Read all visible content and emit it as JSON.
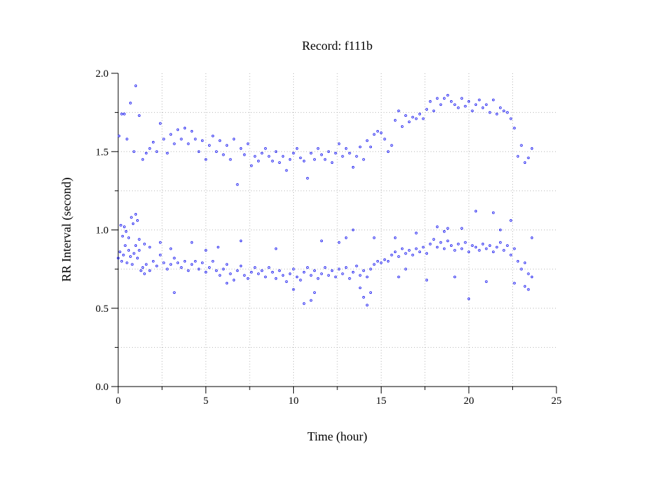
{
  "chart_data": {
    "type": "scatter",
    "title": "Record:  f111b",
    "xlabel": "Time (hour)",
    "ylabel": "RR Interval (second)",
    "xlim": [
      0,
      25
    ],
    "ylim": [
      0,
      2
    ],
    "x_ticks": [
      "0",
      "5",
      "10",
      "15",
      "20",
      "25"
    ],
    "y_ticks": [
      "0.0",
      "0.5",
      "1.0",
      "1.5",
      "2.0"
    ],
    "grid": true,
    "marker_color": "#1b1bf0",
    "series": [
      {
        "points": [
          [
            0.0,
            0.82
          ],
          [
            0.1,
            0.86
          ],
          [
            0.2,
            0.8
          ],
          [
            0.3,
            0.84
          ],
          [
            0.4,
            0.9
          ],
          [
            0.5,
            0.79
          ],
          [
            0.6,
            0.87
          ],
          [
            0.7,
            0.83
          ],
          [
            0.8,
            0.78
          ],
          [
            0.9,
            0.85
          ],
          [
            1.0,
            0.9
          ],
          [
            1.1,
            0.82
          ],
          [
            1.2,
            0.87
          ],
          [
            1.3,
            0.74
          ],
          [
            1.4,
            0.76
          ],
          [
            1.5,
            0.72
          ],
          [
            1.6,
            0.78
          ],
          [
            1.8,
            0.74
          ],
          [
            2.0,
            0.8
          ],
          [
            2.2,
            0.77
          ],
          [
            2.4,
            0.84
          ],
          [
            2.6,
            0.79
          ],
          [
            2.8,
            0.75
          ],
          [
            3.0,
            0.78
          ],
          [
            3.2,
            0.82
          ],
          [
            3.4,
            0.79
          ],
          [
            3.6,
            0.76
          ],
          [
            3.8,
            0.8
          ],
          [
            4.0,
            0.74
          ],
          [
            4.2,
            0.78
          ],
          [
            4.4,
            0.8
          ],
          [
            4.6,
            0.75
          ],
          [
            4.8,
            0.79
          ],
          [
            5.0,
            0.73
          ],
          [
            5.2,
            0.76
          ],
          [
            5.4,
            0.8
          ],
          [
            5.6,
            0.74
          ],
          [
            5.8,
            0.71
          ],
          [
            6.0,
            0.75
          ],
          [
            6.2,
            0.78
          ],
          [
            6.4,
            0.72
          ],
          [
            6.6,
            0.68
          ],
          [
            6.8,
            0.74
          ],
          [
            7.0,
            0.77
          ],
          [
            7.2,
            0.71
          ],
          [
            7.4,
            0.69
          ],
          [
            7.6,
            0.73
          ],
          [
            7.8,
            0.76
          ],
          [
            8.0,
            0.72
          ],
          [
            8.2,
            0.74
          ],
          [
            8.4,
            0.7
          ],
          [
            8.6,
            0.76
          ],
          [
            8.8,
            0.73
          ],
          [
            9.0,
            0.69
          ],
          [
            9.2,
            0.74
          ],
          [
            9.4,
            0.71
          ],
          [
            9.6,
            0.67
          ],
          [
            9.8,
            0.72
          ],
          [
            10.0,
            0.75
          ],
          [
            10.2,
            0.7
          ],
          [
            10.4,
            0.68
          ],
          [
            10.6,
            0.73
          ],
          [
            10.8,
            0.76
          ],
          [
            11.0,
            0.71
          ],
          [
            11.2,
            0.74
          ],
          [
            11.4,
            0.69
          ],
          [
            11.6,
            0.72
          ],
          [
            11.8,
            0.76
          ],
          [
            12.0,
            0.71
          ],
          [
            12.2,
            0.74
          ],
          [
            12.4,
            0.7
          ],
          [
            12.6,
            0.75
          ],
          [
            12.8,
            0.72
          ],
          [
            13.0,
            0.76
          ],
          [
            13.2,
            0.69
          ],
          [
            13.4,
            0.73
          ],
          [
            13.6,
            0.77
          ],
          [
            13.8,
            0.71
          ],
          [
            14.0,
            0.74
          ],
          [
            14.2,
            0.7
          ],
          [
            14.4,
            0.75
          ],
          [
            14.6,
            0.78
          ],
          [
            14.8,
            0.8
          ],
          [
            15.0,
            0.79
          ],
          [
            15.2,
            0.81
          ],
          [
            15.4,
            0.8
          ],
          [
            15.6,
            0.84
          ],
          [
            15.8,
            0.86
          ],
          [
            16.0,
            0.83
          ],
          [
            16.2,
            0.88
          ],
          [
            16.4,
            0.85
          ],
          [
            16.6,
            0.87
          ],
          [
            16.8,
            0.84
          ],
          [
            17.0,
            0.88
          ],
          [
            17.2,
            0.86
          ],
          [
            17.4,
            0.89
          ],
          [
            17.6,
            0.85
          ],
          [
            17.8,
            0.91
          ],
          [
            18.0,
            0.94
          ],
          [
            18.2,
            0.89
          ],
          [
            18.4,
            0.92
          ],
          [
            18.6,
            0.88
          ],
          [
            18.8,
            0.93
          ],
          [
            19.0,
            0.9
          ],
          [
            19.2,
            0.87
          ],
          [
            19.4,
            0.91
          ],
          [
            19.6,
            0.88
          ],
          [
            19.8,
            0.92
          ],
          [
            20.0,
            0.86
          ],
          [
            20.2,
            0.9
          ],
          [
            20.4,
            0.89
          ],
          [
            20.6,
            0.87
          ],
          [
            20.8,
            0.91
          ],
          [
            21.0,
            0.88
          ],
          [
            21.2,
            0.9
          ],
          [
            21.4,
            0.86
          ],
          [
            21.6,
            0.89
          ],
          [
            21.8,
            0.92
          ],
          [
            22.0,
            0.87
          ],
          [
            22.2,
            0.9
          ],
          [
            22.4,
            0.84
          ],
          [
            22.6,
            0.88
          ],
          [
            22.8,
            0.8
          ],
          [
            23.0,
            0.75
          ],
          [
            23.2,
            0.79
          ],
          [
            23.4,
            0.72
          ],
          [
            23.6,
            0.7
          ],
          [
            0.05,
            1.6
          ],
          [
            0.2,
            1.74
          ],
          [
            0.35,
            1.74
          ],
          [
            0.5,
            1.58
          ],
          [
            0.7,
            1.81
          ],
          [
            0.9,
            1.5
          ],
          [
            1.0,
            1.92
          ],
          [
            1.2,
            1.73
          ],
          [
            1.4,
            1.45
          ],
          [
            1.6,
            1.49
          ],
          [
            1.8,
            1.52
          ],
          [
            2.0,
            1.56
          ],
          [
            2.2,
            1.5
          ],
          [
            2.4,
            1.68
          ],
          [
            2.6,
            1.58
          ],
          [
            2.8,
            1.49
          ],
          [
            3.0,
            1.61
          ],
          [
            3.2,
            1.55
          ],
          [
            3.4,
            1.64
          ],
          [
            3.6,
            1.58
          ],
          [
            3.8,
            1.65
          ],
          [
            4.0,
            1.55
          ],
          [
            4.2,
            1.63
          ],
          [
            4.4,
            1.58
          ],
          [
            4.6,
            1.5
          ],
          [
            4.8,
            1.57
          ],
          [
            5.0,
            1.45
          ],
          [
            5.2,
            1.54
          ],
          [
            5.4,
            1.6
          ],
          [
            5.6,
            1.5
          ],
          [
            5.8,
            1.57
          ],
          [
            6.0,
            1.48
          ],
          [
            6.2,
            1.54
          ],
          [
            6.4,
            1.45
          ],
          [
            6.6,
            1.58
          ],
          [
            6.8,
            1.29
          ],
          [
            7.0,
            1.52
          ],
          [
            7.2,
            1.48
          ],
          [
            7.4,
            1.55
          ],
          [
            7.6,
            1.41
          ],
          [
            7.8,
            1.47
          ],
          [
            8.0,
            1.44
          ],
          [
            8.2,
            1.49
          ],
          [
            8.4,
            1.52
          ],
          [
            8.6,
            1.47
          ],
          [
            8.8,
            1.44
          ],
          [
            9.0,
            1.5
          ],
          [
            9.2,
            1.43
          ],
          [
            9.4,
            1.47
          ],
          [
            9.6,
            1.38
          ],
          [
            9.8,
            1.45
          ],
          [
            10.0,
            1.49
          ],
          [
            10.2,
            1.52
          ],
          [
            10.4,
            1.46
          ],
          [
            10.6,
            1.44
          ],
          [
            10.8,
            1.33
          ],
          [
            11.0,
            1.49
          ],
          [
            11.2,
            1.45
          ],
          [
            11.4,
            1.52
          ],
          [
            11.6,
            1.48
          ],
          [
            11.8,
            1.45
          ],
          [
            12.0,
            1.5
          ],
          [
            12.2,
            1.43
          ],
          [
            12.4,
            1.49
          ],
          [
            12.6,
            1.55
          ],
          [
            12.8,
            1.47
          ],
          [
            13.0,
            1.52
          ],
          [
            13.2,
            1.49
          ],
          [
            13.4,
            1.4
          ],
          [
            13.6,
            1.47
          ],
          [
            13.8,
            1.53
          ],
          [
            14.0,
            1.45
          ],
          [
            14.2,
            1.57
          ],
          [
            14.4,
            1.53
          ],
          [
            14.6,
            1.61
          ],
          [
            14.8,
            1.63
          ],
          [
            15.0,
            1.62
          ],
          [
            15.2,
            1.58
          ],
          [
            15.4,
            1.5
          ],
          [
            15.6,
            1.54
          ],
          [
            15.8,
            1.7
          ],
          [
            16.0,
            1.76
          ],
          [
            16.2,
            1.66
          ],
          [
            16.4,
            1.73
          ],
          [
            16.6,
            1.69
          ],
          [
            16.8,
            1.72
          ],
          [
            17.0,
            1.71
          ],
          [
            17.2,
            1.74
          ],
          [
            17.4,
            1.71
          ],
          [
            17.6,
            1.77
          ],
          [
            17.8,
            1.82
          ],
          [
            18.0,
            1.76
          ],
          [
            18.2,
            1.84
          ],
          [
            18.4,
            1.8
          ],
          [
            18.6,
            1.84
          ],
          [
            18.8,
            1.86
          ],
          [
            19.0,
            1.82
          ],
          [
            19.2,
            1.8
          ],
          [
            19.4,
            1.78
          ],
          [
            19.6,
            1.84
          ],
          [
            19.8,
            1.79
          ],
          [
            20.0,
            1.82
          ],
          [
            20.2,
            1.76
          ],
          [
            20.4,
            1.8
          ],
          [
            20.6,
            1.83
          ],
          [
            20.8,
            1.78
          ],
          [
            21.0,
            1.8
          ],
          [
            21.2,
            1.75
          ],
          [
            21.4,
            1.83
          ],
          [
            21.6,
            1.74
          ],
          [
            21.8,
            1.78
          ],
          [
            22.0,
            1.76
          ],
          [
            22.2,
            1.75
          ],
          [
            22.4,
            1.71
          ],
          [
            22.6,
            1.65
          ],
          [
            22.8,
            1.47
          ],
          [
            23.0,
            1.54
          ],
          [
            23.2,
            1.43
          ],
          [
            23.4,
            1.46
          ],
          [
            23.6,
            1.52
          ],
          [
            0.15,
            1.03
          ],
          [
            0.25,
            0.96
          ],
          [
            0.35,
            1.02
          ],
          [
            0.45,
            0.99
          ],
          [
            0.6,
            0.95
          ],
          [
            0.75,
            1.08
          ],
          [
            0.85,
            1.04
          ],
          [
            1.0,
            1.1
          ],
          [
            1.1,
            1.06
          ],
          [
            1.2,
            0.94
          ],
          [
            1.5,
            0.91
          ],
          [
            1.8,
            0.89
          ],
          [
            2.4,
            0.92
          ],
          [
            3.0,
            0.88
          ],
          [
            3.2,
            0.6
          ],
          [
            4.2,
            0.92
          ],
          [
            5.0,
            0.87
          ],
          [
            5.7,
            0.89
          ],
          [
            6.2,
            0.66
          ],
          [
            7.0,
            0.93
          ],
          [
            9.0,
            0.88
          ],
          [
            10.0,
            0.62
          ],
          [
            10.6,
            0.53
          ],
          [
            11.0,
            0.55
          ],
          [
            11.2,
            0.6
          ],
          [
            11.6,
            0.93
          ],
          [
            12.6,
            0.92
          ],
          [
            13.0,
            0.95
          ],
          [
            13.4,
            1.0
          ],
          [
            13.8,
            0.63
          ],
          [
            14.0,
            0.57
          ],
          [
            14.2,
            0.52
          ],
          [
            14.4,
            0.6
          ],
          [
            14.6,
            0.95
          ],
          [
            15.8,
            0.95
          ],
          [
            16.0,
            0.7
          ],
          [
            16.4,
            0.75
          ],
          [
            17.0,
            0.98
          ],
          [
            17.6,
            0.68
          ],
          [
            18.2,
            1.02
          ],
          [
            18.6,
            0.99
          ],
          [
            18.8,
            1.01
          ],
          [
            19.2,
            0.7
          ],
          [
            19.6,
            1.01
          ],
          [
            20.0,
            0.56
          ],
          [
            20.4,
            1.12
          ],
          [
            21.0,
            0.67
          ],
          [
            21.4,
            1.11
          ],
          [
            21.8,
            1.0
          ],
          [
            22.4,
            1.06
          ],
          [
            22.6,
            0.66
          ],
          [
            23.2,
            0.64
          ],
          [
            23.4,
            0.62
          ],
          [
            23.6,
            0.95
          ]
        ]
      }
    ]
  }
}
